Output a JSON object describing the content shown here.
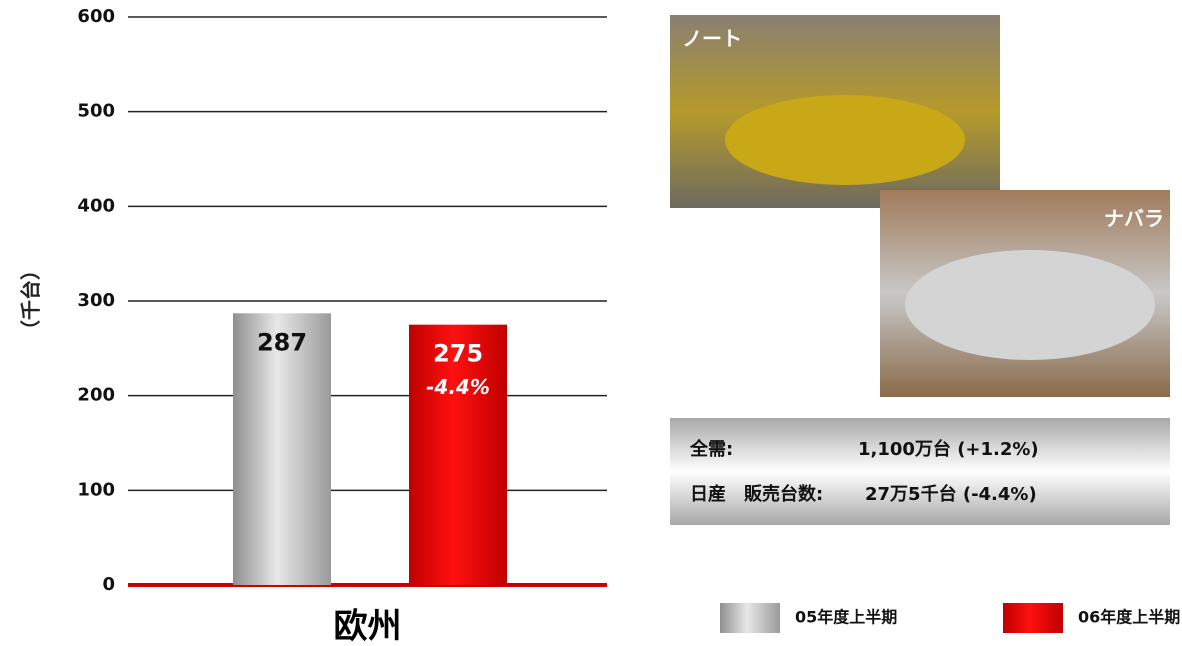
{
  "chart_data": {
    "type": "bar",
    "y_label": "（千台）",
    "categories": [
      "欧州"
    ],
    "series": [
      {
        "name": "05年度上半期",
        "color": "#b8b8b8",
        "values": [
          287
        ]
      },
      {
        "name": "06年度上半期",
        "color": "#e00000",
        "values": [
          275
        ]
      }
    ],
    "change_label": "-4.4%",
    "ylim": [
      0,
      600
    ],
    "yticks": [
      0,
      100,
      200,
      300,
      400,
      500,
      600
    ],
    "grid": true
  },
  "photos": [
    "ノート",
    "ナバラ"
  ],
  "summary": [
    [
      "全需:",
      "1,100万台 (+1.2%)"
    ],
    [
      "日産　販売台数:",
      "27万5千台 (-4.4%)"
    ]
  ]
}
